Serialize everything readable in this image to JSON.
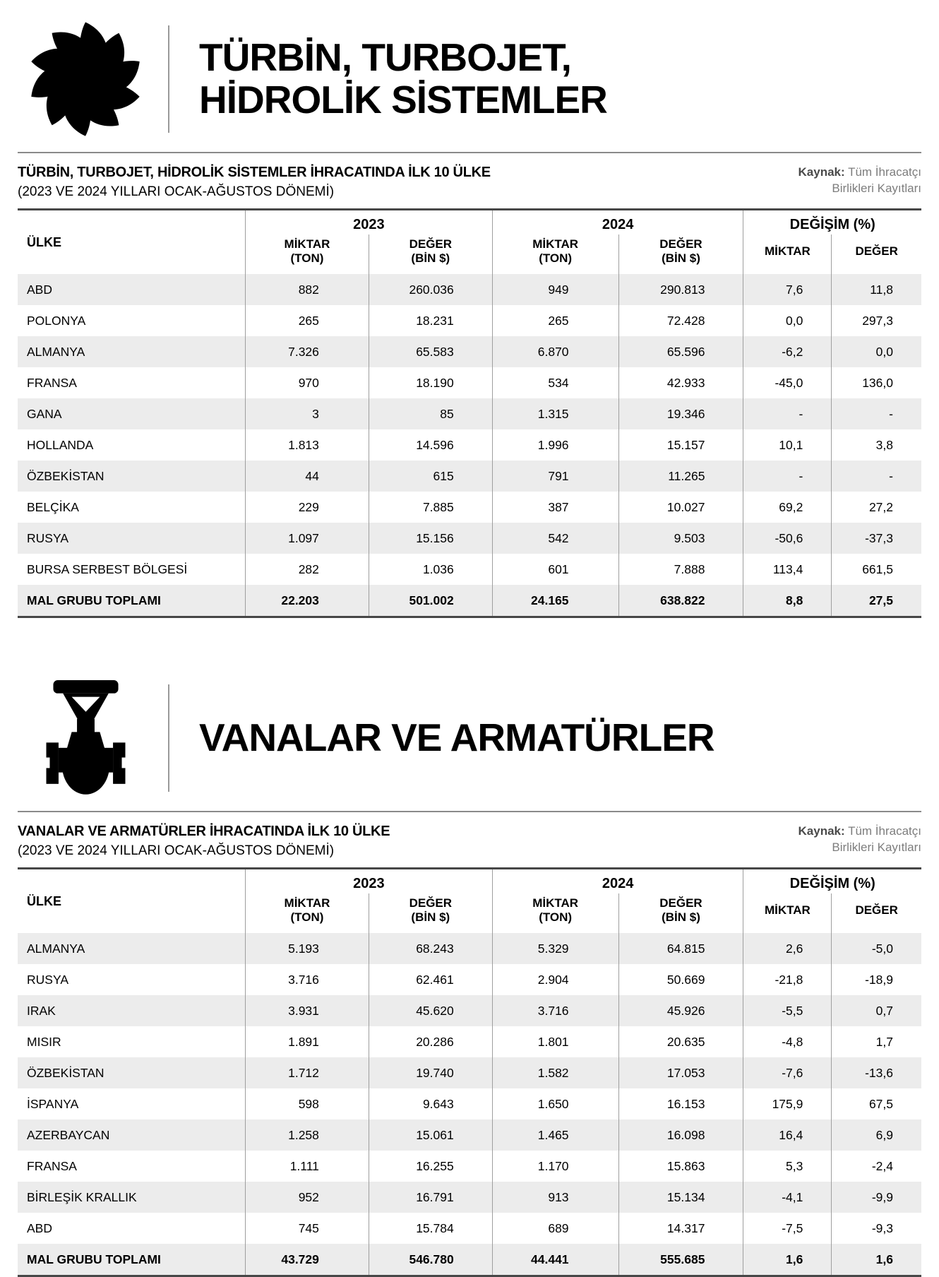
{
  "colors": {
    "zebra": "#ececec",
    "row_line": "#9e9e9e",
    "table_border": "#474747",
    "rule": "#8a8a8a",
    "source_label": "#4a4a4a",
    "source_text": "#7d7d7d"
  },
  "sections": [
    {
      "id": "turbine",
      "icon": "turbine-icon",
      "heading_lines": [
        "TÜRBİN, TURBOJET,",
        "HİDROLİK SİSTEMLER"
      ],
      "table_title": "TÜRBİN, TURBOJET, HİDROLİK SİSTEMLER İHRACATINDA İLK 10 ÜLKE",
      "table_subtitle": "(2023 VE 2024 YILLARI OCAK-AĞUSTOS DÖNEMİ)",
      "source": {
        "label": "Kaynak:",
        "line1": "Tüm İhracatçı",
        "line2": "Birlikleri Kayıtları"
      },
      "columns": {
        "country": "ÜLKE",
        "year1": "2023",
        "year2": "2024",
        "change": "DEĞİŞİM (%)",
        "amount": "MİKTAR",
        "amount_unit": "(TON)",
        "value": "DEĞER",
        "value_unit": "(BİN $)",
        "amount_short": "MİKTAR",
        "value_short": "DEĞER"
      },
      "rows": [
        [
          "ABD",
          "882",
          "260.036",
          "949",
          "290.813",
          "7,6",
          "11,8"
        ],
        [
          "POLONYA",
          "265",
          "18.231",
          "265",
          "72.428",
          "0,0",
          "297,3"
        ],
        [
          "ALMANYA",
          "7.326",
          "65.583",
          "6.870",
          "65.596",
          "-6,2",
          "0,0"
        ],
        [
          "FRANSA",
          "970",
          "18.190",
          "534",
          "42.933",
          "-45,0",
          "136,0"
        ],
        [
          "GANA",
          "3",
          "85",
          "1.315",
          "19.346",
          "-",
          "-"
        ],
        [
          "HOLLANDA",
          "1.813",
          "14.596",
          "1.996",
          "15.157",
          "10,1",
          "3,8"
        ],
        [
          "ÖZBEKİSTAN",
          "44",
          "615",
          "791",
          "11.265",
          "-",
          "-"
        ],
        [
          "BELÇİKA",
          "229",
          "7.885",
          "387",
          "10.027",
          "69,2",
          "27,2"
        ],
        [
          "RUSYA",
          "1.097",
          "15.156",
          "542",
          "9.503",
          "-50,6",
          "-37,3"
        ],
        [
          "BURSA SERBEST BÖLGESİ",
          "282",
          "1.036",
          "601",
          "7.888",
          "113,4",
          "661,5"
        ]
      ],
      "total_row": [
        "MAL GRUBU TOPLAMI",
        "22.203",
        "501.002",
        "24.165",
        "638.822",
        "8,8",
        "27,5"
      ]
    },
    {
      "id": "valves",
      "icon": "valve-icon",
      "heading_lines": [
        "VANALAR VE ARMATÜRLER"
      ],
      "table_title": "VANALAR VE ARMATÜRLER İHRACATINDA İLK 10 ÜLKE",
      "table_subtitle": "(2023 VE 2024 YILLARI OCAK-AĞUSTOS DÖNEMİ)",
      "source": {
        "label": "Kaynak:",
        "line1": "Tüm İhracatçı",
        "line2": "Birlikleri Kayıtları"
      },
      "columns": {
        "country": "ÜLKE",
        "year1": "2023",
        "year2": "2024",
        "change": "DEĞİŞİM (%)",
        "amount": "MİKTAR",
        "amount_unit": "(TON)",
        "value": "DEĞER",
        "value_unit": "(BİN $)",
        "amount_short": "MİKTAR",
        "value_short": "DEĞER"
      },
      "rows": [
        [
          "ALMANYA",
          "5.193",
          "68.243",
          "5.329",
          "64.815",
          "2,6",
          "-5,0"
        ],
        [
          "RUSYA",
          "3.716",
          "62.461",
          "2.904",
          "50.669",
          "-21,8",
          "-18,9"
        ],
        [
          "IRAK",
          "3.931",
          "45.620",
          "3.716",
          "45.926",
          "-5,5",
          "0,7"
        ],
        [
          "MISIR",
          "1.891",
          "20.286",
          "1.801",
          "20.635",
          "-4,8",
          "1,7"
        ],
        [
          "ÖZBEKİSTAN",
          "1.712",
          "19.740",
          "1.582",
          "17.053",
          "-7,6",
          "-13,6"
        ],
        [
          "İSPANYA",
          "598",
          "9.643",
          "1.650",
          "16.153",
          "175,9",
          "67,5"
        ],
        [
          "AZERBAYCAN",
          "1.258",
          "15.061",
          "1.465",
          "16.098",
          "16,4",
          "6,9"
        ],
        [
          "FRANSA",
          "1.111",
          "16.255",
          "1.170",
          "15.863",
          "5,3",
          "-2,4"
        ],
        [
          "BİRLEŞİK KRALLIK",
          "952",
          "16.791",
          "913",
          "15.134",
          "-4,1",
          "-9,9"
        ],
        [
          "ABD",
          "745",
          "15.784",
          "689",
          "14.317",
          "-7,5",
          "-9,3"
        ]
      ],
      "total_row": [
        "MAL GRUBU TOPLAMI",
        "43.729",
        "546.780",
        "44.441",
        "555.685",
        "1,6",
        "1,6"
      ]
    }
  ]
}
